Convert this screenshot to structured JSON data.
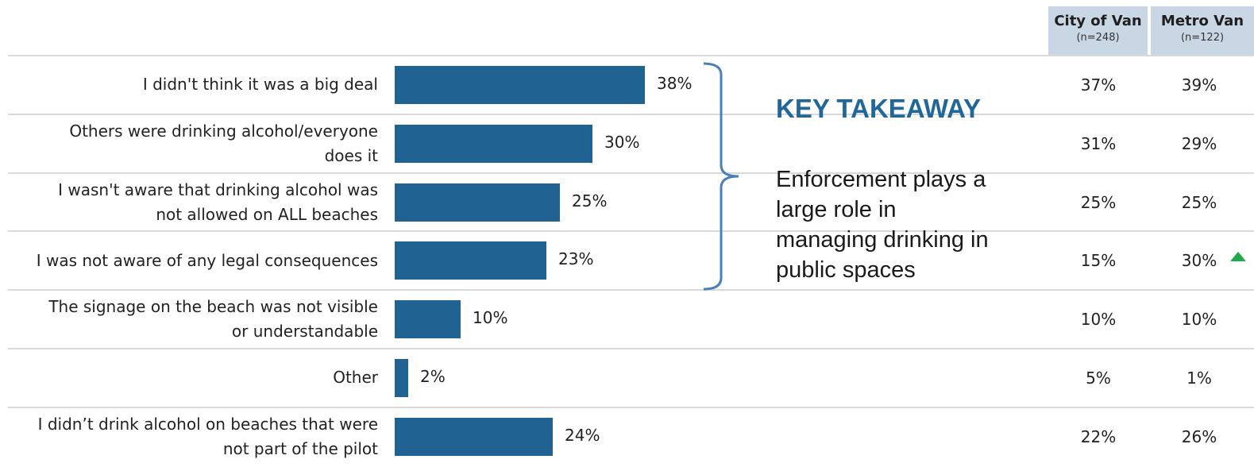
{
  "columns": [
    {
      "name": "City of Van",
      "n": "(n=248)"
    },
    {
      "name": "Metro Van",
      "n": "(n=122)"
    }
  ],
  "takeaway": {
    "title": "KEY TAKEAWAY",
    "text": "Enforcement plays a large role in managing drinking in public spaces"
  },
  "colors": {
    "bar": "#206392",
    "header_bg": "#c9d6e3",
    "takeaway_title": "#22679a",
    "up_arrow": "#1faa4b"
  },
  "chart_data": {
    "type": "bar",
    "orientation": "horizontal",
    "categories": [
      "I didn't think it was a big deal",
      "Others were drinking alcohol/everyone does it",
      "I wasn't aware that drinking alcohol was not allowed on ALL beaches",
      "I was not aware of any legal consequences",
      "The signage on the beach was not visible or understandable",
      "Other",
      "I didn’t drink alcohol on beaches that were not part of the pilot"
    ],
    "label_lines": [
      [
        "I didn't think it was a big deal"
      ],
      [
        "Others were drinking alcohol/everyone",
        "does it"
      ],
      [
        "I wasn't aware that drinking alcohol was",
        "not allowed on ALL beaches"
      ],
      [
        "I was not aware of any legal consequences"
      ],
      [
        "The signage on the beach was not visible",
        "or understandable"
      ],
      [
        "Other"
      ],
      [
        "I didn’t drink alcohol on beaches that were",
        "not part of the pilot"
      ]
    ],
    "values": [
      38,
      30,
      25,
      23,
      10,
      2,
      24
    ],
    "value_labels": [
      "38%",
      "30%",
      "25%",
      "23%",
      "10%",
      "2%",
      "24%"
    ],
    "unit": "%",
    "table": {
      "City of Van": [
        "37%",
        "31%",
        "25%",
        "15%",
        "10%",
        "5%",
        "22%"
      ],
      "Metro Van": [
        "39%",
        "29%",
        "25%",
        "30%",
        "10%",
        "1%",
        "26%"
      ]
    },
    "significant_up": [
      {
        "row": 3,
        "column": "Metro Van",
        "icon": "up-triangle-icon"
      }
    ],
    "grid": false,
    "legend": "none"
  }
}
